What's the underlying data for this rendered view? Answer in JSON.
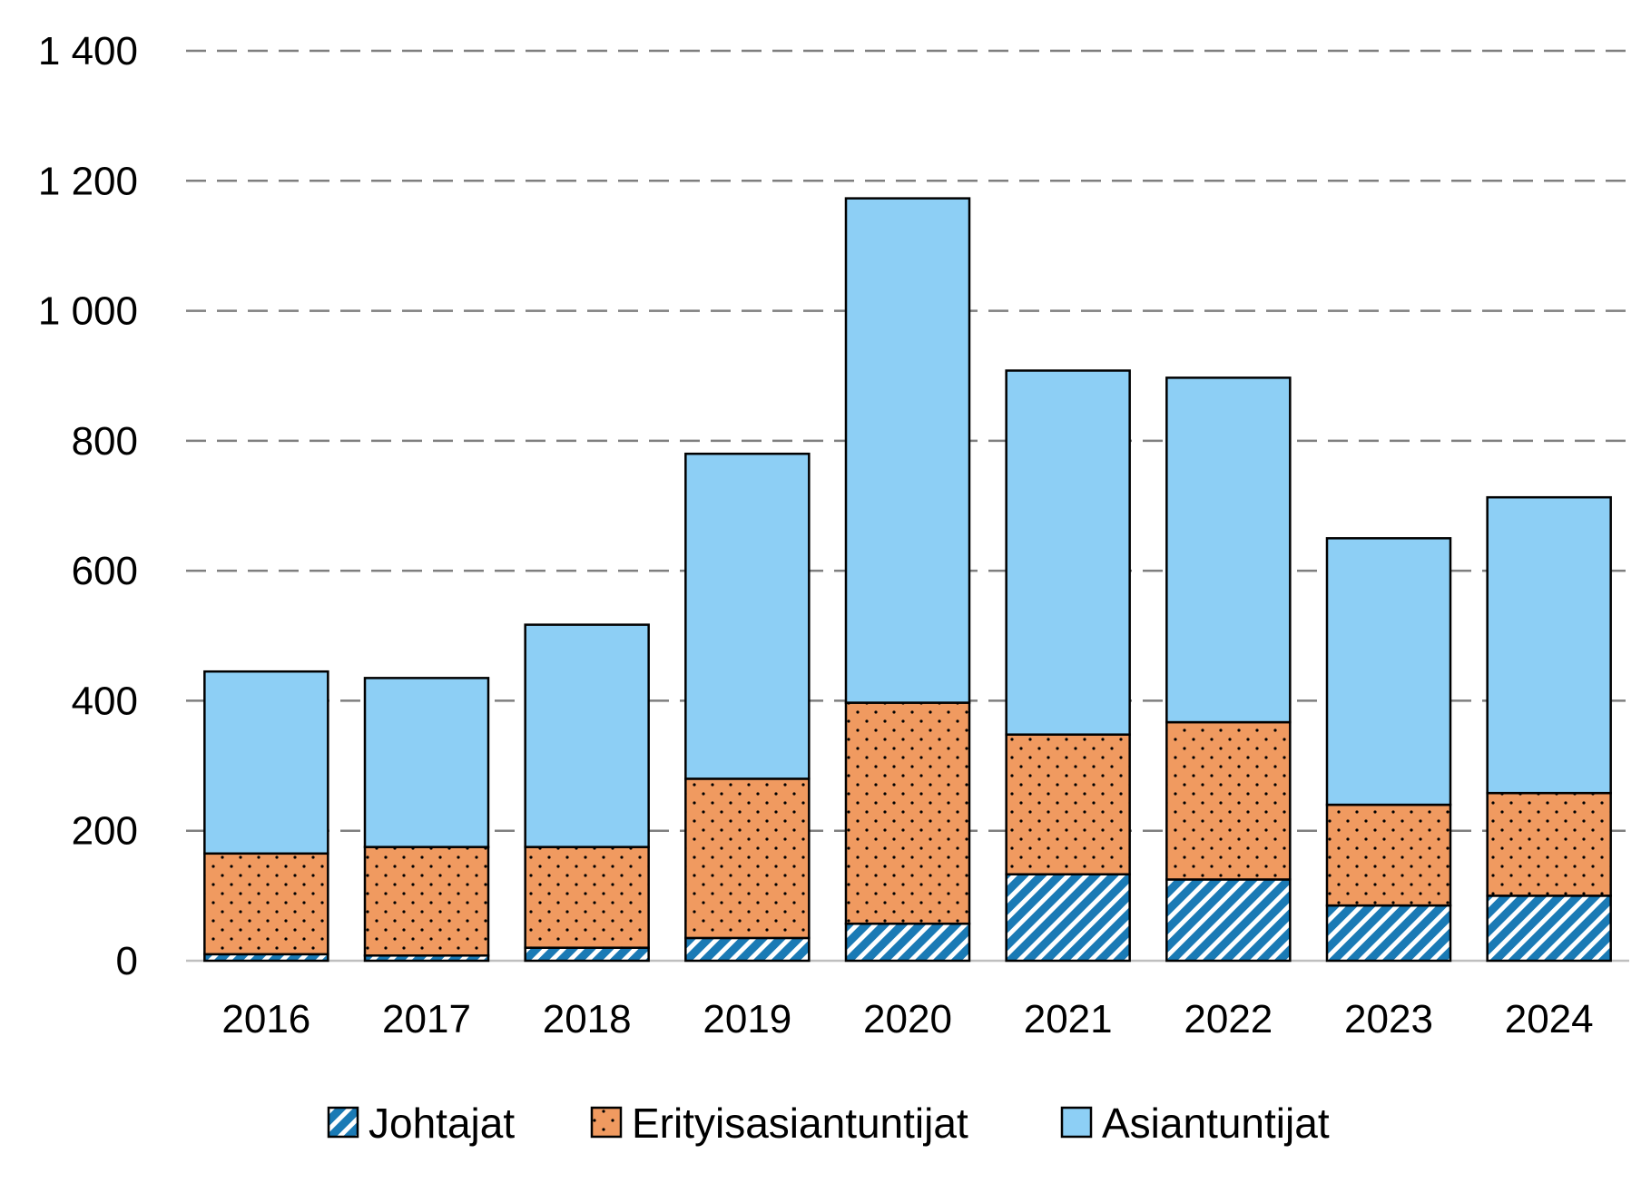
{
  "chart_data": {
    "type": "bar",
    "stacked": true,
    "categories": [
      "2016",
      "2017",
      "2018",
      "2019",
      "2020",
      "2021",
      "2022",
      "2023",
      "2024"
    ],
    "series": [
      {
        "name": "Johtajat",
        "color": "#1a7ab5",
        "pattern": "diagonal-stripes",
        "values": [
          10,
          8,
          20,
          35,
          57,
          133,
          125,
          85,
          100
        ]
      },
      {
        "name": "Erityisasiantuntijat",
        "color": "#f09a60",
        "pattern": "dots",
        "values": [
          155,
          167,
          155,
          245,
          340,
          215,
          242,
          155,
          158
        ]
      },
      {
        "name": "Asiantuntijat",
        "color": "#8dcff5",
        "pattern": "solid",
        "values": [
          280,
          260,
          342,
          500,
          776,
          560,
          530,
          410,
          455
        ]
      }
    ],
    "yticks": [
      0,
      200,
      400,
      600,
      800,
      1000,
      1200,
      1400
    ],
    "ytick_labels": [
      "0",
      "200",
      "400",
      "600",
      "800",
      "1 000",
      "1 200",
      "1 400"
    ],
    "ylim": [
      0,
      1400
    ],
    "grid": true,
    "legend_position": "bottom",
    "title": "",
    "xlabel": "",
    "ylabel": ""
  }
}
